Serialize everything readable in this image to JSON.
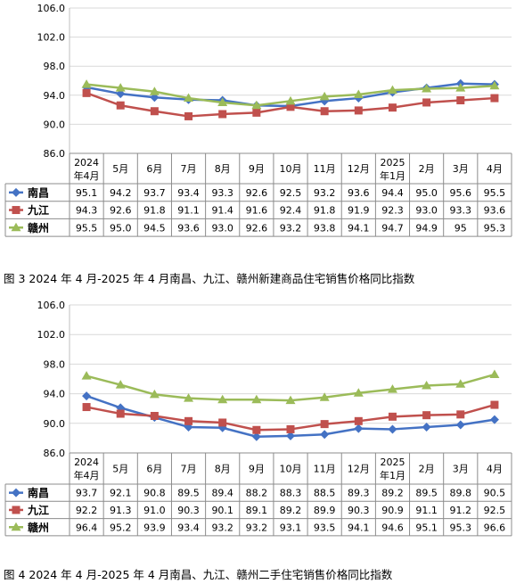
{
  "chart_data": [
    {
      "type": "line",
      "caption": "图 3 2024 年 4 月-2025 年 4 月南昌、九江、赣州新建商品住宅销售价格同比指数",
      "categories": [
        [
          "2024",
          "年4月"
        ],
        [
          "5月"
        ],
        [
          "6月"
        ],
        [
          "7月"
        ],
        [
          "8月"
        ],
        [
          "9月"
        ],
        [
          "10月"
        ],
        [
          "11月"
        ],
        [
          "12月"
        ],
        [
          "2025",
          "年1月"
        ],
        [
          "2月"
        ],
        [
          "3月"
        ],
        [
          "4月"
        ]
      ],
      "ylim": [
        86.0,
        106.0
      ],
      "yticks": [
        "106.0",
        "102.0",
        "98.0",
        "94.0",
        "90.0",
        "86.0"
      ],
      "grid": true,
      "series": [
        {
          "name": "南昌",
          "color": "#4472c4",
          "marker": "diamond",
          "values": [
            95.1,
            94.2,
            93.7,
            93.4,
            93.3,
            92.6,
            92.5,
            93.2,
            93.6,
            94.4,
            95.0,
            95.6,
            95.5
          ],
          "labels": [
            "95.1",
            "94.2",
            "93.7",
            "93.4",
            "93.3",
            "92.6",
            "92.5",
            "93.2",
            "93.6",
            "94.4",
            "95.0",
            "95.6",
            "95.5"
          ]
        },
        {
          "name": "九江",
          "color": "#c0504d",
          "marker": "square",
          "values": [
            94.3,
            92.6,
            91.8,
            91.1,
            91.4,
            91.6,
            92.4,
            91.8,
            91.9,
            92.3,
            93.0,
            93.3,
            93.6
          ],
          "labels": [
            "94.3",
            "92.6",
            "91.8",
            "91.1",
            "91.4",
            "91.6",
            "92.4",
            "91.8",
            "91.9",
            "92.3",
            "93.0",
            "93.3",
            "93.6"
          ]
        },
        {
          "name": "赣州",
          "color": "#9bbb59",
          "marker": "triangle",
          "values": [
            95.5,
            95.0,
            94.5,
            93.6,
            93.0,
            92.6,
            93.2,
            93.8,
            94.1,
            94.7,
            94.9,
            95,
            95.3
          ],
          "labels": [
            "95.5",
            "95.0",
            "94.5",
            "93.6",
            "93.0",
            "92.6",
            "93.2",
            "93.8",
            "94.1",
            "94.7",
            "94.9",
            "95",
            "95.3"
          ]
        }
      ]
    },
    {
      "type": "line",
      "caption": "图 4 2024 年 4 月-2025 年 4 月南昌、九江、赣州二手住宅销售价格同比指数",
      "categories": [
        [
          "2024",
          "年4月"
        ],
        [
          "5月"
        ],
        [
          "6月"
        ],
        [
          "7月"
        ],
        [
          "8月"
        ],
        [
          "9月"
        ],
        [
          "10月"
        ],
        [
          "11月"
        ],
        [
          "12月"
        ],
        [
          "2025",
          "年1月"
        ],
        [
          "2月"
        ],
        [
          "3月"
        ],
        [
          "4月"
        ]
      ],
      "ylim": [
        86.0,
        106.0
      ],
      "yticks": [
        "106.0",
        "102.0",
        "98.0",
        "94.0",
        "90.0",
        "86.0"
      ],
      "grid": true,
      "series": [
        {
          "name": "南昌",
          "color": "#4472c4",
          "marker": "diamond",
          "values": [
            93.7,
            92.1,
            90.8,
            89.5,
            89.4,
            88.2,
            88.3,
            88.5,
            89.3,
            89.2,
            89.5,
            89.8,
            90.5
          ],
          "labels": [
            "93.7",
            "92.1",
            "90.8",
            "89.5",
            "89.4",
            "88.2",
            "88.3",
            "88.5",
            "89.3",
            "89.2",
            "89.5",
            "89.8",
            "90.5"
          ]
        },
        {
          "name": "九江",
          "color": "#c0504d",
          "marker": "square",
          "values": [
            92.2,
            91.3,
            91.0,
            90.3,
            90.1,
            89.1,
            89.2,
            89.9,
            90.3,
            90.9,
            91.1,
            91.2,
            92.5
          ],
          "labels": [
            "92.2",
            "91.3",
            "91.0",
            "90.3",
            "90.1",
            "89.1",
            "89.2",
            "89.9",
            "90.3",
            "90.9",
            "91.1",
            "91.2",
            "92.5"
          ]
        },
        {
          "name": "赣州",
          "color": "#9bbb59",
          "marker": "triangle",
          "values": [
            96.4,
            95.2,
            93.9,
            93.4,
            93.2,
            93.2,
            93.1,
            93.5,
            94.1,
            94.6,
            95.1,
            95.3,
            96.6
          ],
          "labels": [
            "96.4",
            "95.2",
            "93.9",
            "93.4",
            "93.2",
            "93.2",
            "93.1",
            "93.5",
            "94.1",
            "94.6",
            "95.1",
            "95.3",
            "96.6"
          ]
        }
      ]
    }
  ]
}
